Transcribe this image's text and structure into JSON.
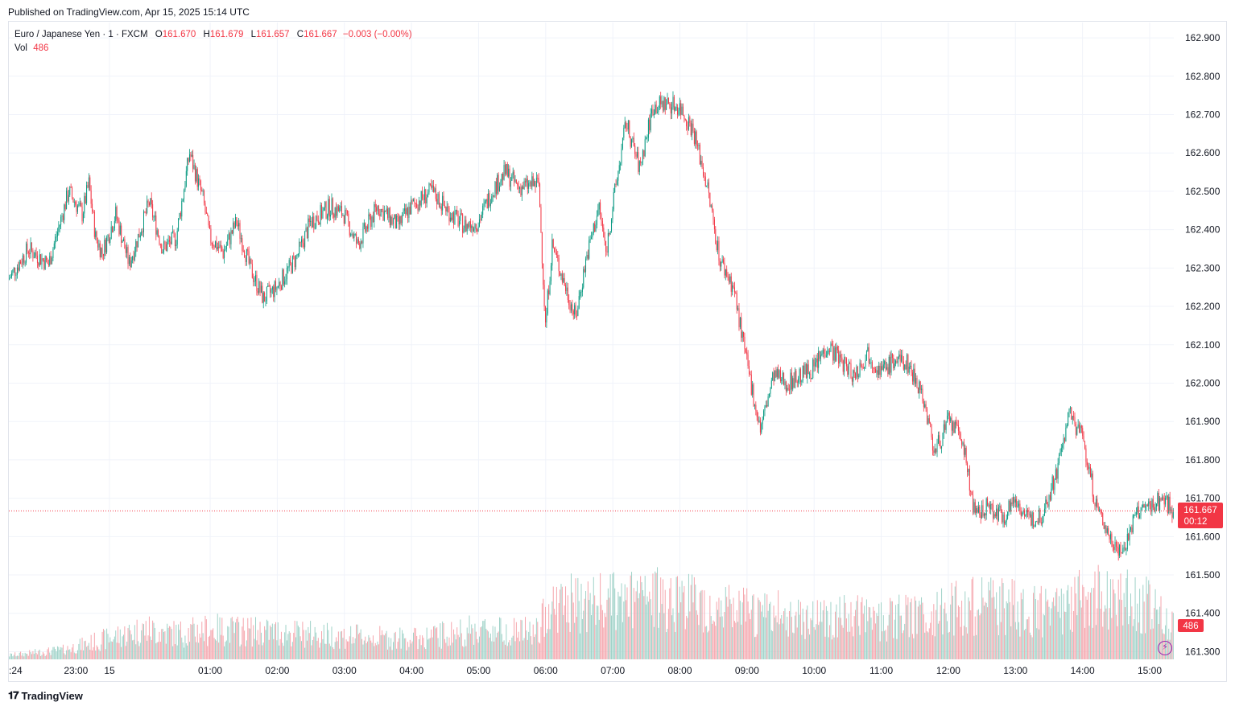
{
  "published": "Published on TradingView.com, Apr 15, 2025 15:14 UTC",
  "legend": {
    "symbol": "Euro / Japanese Yen · 1 · FXCM",
    "o_label": "O",
    "o": "161.670",
    "h_label": "H",
    "h": "161.679",
    "l_label": "L",
    "l": "161.657",
    "c_label": "C",
    "c": "161.667",
    "change": "−0.003 (−0.00%)",
    "vol_label": "Vol",
    "vol": "486"
  },
  "price_tag": {
    "price": "161.667",
    "countdown": "00:12"
  },
  "vol_tag": "486",
  "footer": {
    "logo": "𝟏𝟕",
    "brand": "TradingView"
  },
  "icons": {
    "alert": "lightning-icon",
    "logo": "tradingview-logo-icon"
  },
  "colors": {
    "up": "#089981",
    "down": "#f23645",
    "vol_up": "#9fd2c8",
    "vol_down": "#f5a6ad",
    "grid": "#f0f3fa",
    "last_price": "#f23645",
    "alert": "#9c27b0"
  },
  "chart_data": {
    "type": "candlestick",
    "symbol": "EURJPY",
    "timeframe": "1",
    "y_axis": {
      "ticks": [
        "162.900",
        "162.800",
        "162.700",
        "162.600",
        "162.500",
        "162.400",
        "162.300",
        "162.200",
        "162.100",
        "162.000",
        "161.900",
        "161.800",
        "161.700",
        "161.600",
        "161.500",
        "161.400",
        "161.300"
      ],
      "range": [
        161.28,
        162.94
      ],
      "position": "right"
    },
    "x_axis": {
      "ticks": [
        ":24",
        "23:00",
        "15",
        "01:00",
        "02:00",
        "03:00",
        "04:00",
        "05:00",
        "06:00",
        "07:00",
        "08:00",
        "09:00",
        "10:00",
        "11:00",
        "12:00",
        "13:00",
        "14:00",
        "15:00"
      ],
      "tick_hours": [
        -1.6,
        -1,
        -0.5,
        1,
        2,
        3,
        4,
        5,
        6,
        7,
        8,
        9,
        10,
        11,
        12,
        13,
        14,
        15
      ],
      "range_hours": [
        -2.0,
        15.36
      ]
    },
    "last_price": 161.667,
    "grid": true,
    "price_path": [
      [
        -2.0,
        162.27
      ],
      [
        -1.7,
        162.35
      ],
      [
        -1.4,
        162.31
      ],
      [
        -1.1,
        162.5
      ],
      [
        -0.9,
        162.44
      ],
      [
        -0.8,
        162.52
      ],
      [
        -0.7,
        162.38
      ],
      [
        -0.6,
        162.34
      ],
      [
        -0.4,
        162.44
      ],
      [
        -0.2,
        162.31
      ],
      [
        0.1,
        162.47
      ],
      [
        0.3,
        162.35
      ],
      [
        0.5,
        162.38
      ],
      [
        0.7,
        162.6
      ],
      [
        0.9,
        162.48
      ],
      [
        1.0,
        162.38
      ],
      [
        1.2,
        162.34
      ],
      [
        1.4,
        162.42
      ],
      [
        1.6,
        162.3
      ],
      [
        1.8,
        162.22
      ],
      [
        2.0,
        162.25
      ],
      [
        2.3,
        162.33
      ],
      [
        2.5,
        162.42
      ],
      [
        2.8,
        162.46
      ],
      [
        3.0,
        162.44
      ],
      [
        3.2,
        162.36
      ],
      [
        3.5,
        162.46
      ],
      [
        3.8,
        162.41
      ],
      [
        4.0,
        162.46
      ],
      [
        4.3,
        162.5
      ],
      [
        4.6,
        162.44
      ],
      [
        4.8,
        162.41
      ],
      [
        5.0,
        162.42
      ],
      [
        5.2,
        162.5
      ],
      [
        5.4,
        162.55
      ],
      [
        5.6,
        162.51
      ],
      [
        5.9,
        162.52
      ],
      [
        6.0,
        162.15
      ],
      [
        6.1,
        162.36
      ],
      [
        6.3,
        162.25
      ],
      [
        6.45,
        162.17
      ],
      [
        6.6,
        162.32
      ],
      [
        6.8,
        162.46
      ],
      [
        6.9,
        162.34
      ],
      [
        7.0,
        162.46
      ],
      [
        7.2,
        162.68
      ],
      [
        7.4,
        162.56
      ],
      [
        7.6,
        162.72
      ],
      [
        7.8,
        162.73
      ],
      [
        8.0,
        162.72
      ],
      [
        8.2,
        162.66
      ],
      [
        8.4,
        162.52
      ],
      [
        8.6,
        162.32
      ],
      [
        8.8,
        162.25
      ],
      [
        9.0,
        162.05
      ],
      [
        9.2,
        161.88
      ],
      [
        9.4,
        162.02
      ],
      [
        9.6,
        162.0
      ],
      [
        9.8,
        162.02
      ],
      [
        10.0,
        162.04
      ],
      [
        10.2,
        162.1
      ],
      [
        10.4,
        162.06
      ],
      [
        10.6,
        162.02
      ],
      [
        10.8,
        162.08
      ],
      [
        11.0,
        162.03
      ],
      [
        11.2,
        162.06
      ],
      [
        11.4,
        162.05
      ],
      [
        11.6,
        161.98
      ],
      [
        11.8,
        161.82
      ],
      [
        12.0,
        161.9
      ],
      [
        12.2,
        161.86
      ],
      [
        12.4,
        161.65
      ],
      [
        12.6,
        161.68
      ],
      [
        12.8,
        161.65
      ],
      [
        13.0,
        161.7
      ],
      [
        13.2,
        161.64
      ],
      [
        13.4,
        161.66
      ],
      [
        13.6,
        161.76
      ],
      [
        13.8,
        161.92
      ],
      [
        14.0,
        161.86
      ],
      [
        14.2,
        161.68
      ],
      [
        14.4,
        161.6
      ],
      [
        14.6,
        161.56
      ],
      [
        14.8,
        161.66
      ],
      [
        15.0,
        161.68
      ],
      [
        15.2,
        161.7
      ],
      [
        15.36,
        161.667
      ]
    ],
    "volume_path": [
      [
        -2.0,
        15
      ],
      [
        -1.2,
        35
      ],
      [
        -0.4,
        85
      ],
      [
        0.0,
        110
      ],
      [
        0.5,
        95
      ],
      [
        1.0,
        110
      ],
      [
        2.0,
        100
      ],
      [
        3.0,
        85
      ],
      [
        4.0,
        75
      ],
      [
        5.0,
        110
      ],
      [
        5.9,
        100
      ],
      [
        6.0,
        200
      ],
      [
        7.0,
        210
      ],
      [
        8.0,
        230
      ],
      [
        8.5,
        190
      ],
      [
        9.0,
        170
      ],
      [
        10.0,
        160
      ],
      [
        11.0,
        150
      ],
      [
        11.7,
        160
      ],
      [
        12.0,
        190
      ],
      [
        12.5,
        200
      ],
      [
        13.0,
        190
      ],
      [
        13.5,
        170
      ],
      [
        14.0,
        220
      ],
      [
        14.5,
        230
      ],
      [
        15.0,
        200
      ],
      [
        15.36,
        120
      ]
    ]
  }
}
